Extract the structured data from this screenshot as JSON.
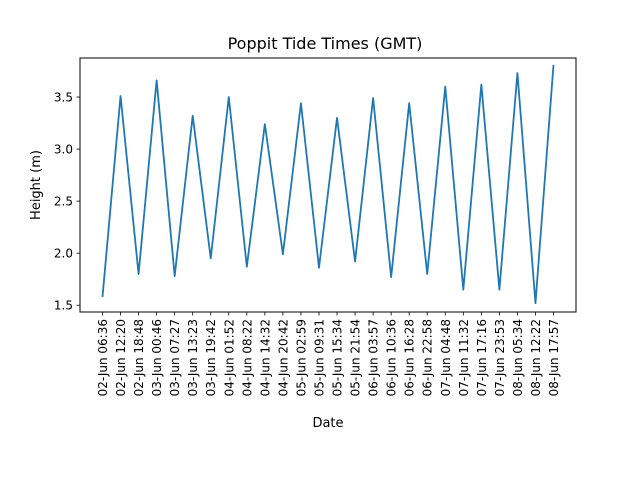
{
  "chart_data": {
    "type": "line",
    "title": "Poppit Tide Times (GMT)",
    "xlabel": "Date",
    "ylabel": "Height (m)",
    "categories": [
      "02-Jun 06:36",
      "02-Jun 12:20",
      "02-Jun 18:48",
      "03-Jun 00:46",
      "03-Jun 07:27",
      "03-Jun 13:23",
      "03-Jun 19:42",
      "04-Jun 01:52",
      "04-Jun 08:22",
      "04-Jun 14:32",
      "04-Jun 20:42",
      "05-Jun 02:59",
      "05-Jun 09:31",
      "05-Jun 15:34",
      "05-Jun 21:54",
      "06-Jun 03:57",
      "06-Jun 10:36",
      "06-Jun 16:28",
      "06-Jun 22:58",
      "07-Jun 04:48",
      "07-Jun 11:32",
      "07-Jun 17:16",
      "07-Jun 23:53",
      "08-Jun 05:34",
      "08-Jun 12:22",
      "08-Jun 17:57"
    ],
    "series": [
      {
        "color": "#1f77b4",
        "values": [
          1.58,
          3.51,
          1.8,
          3.66,
          1.78,
          3.32,
          1.95,
          3.5,
          1.87,
          3.24,
          1.99,
          3.44,
          1.86,
          3.3,
          1.92,
          3.49,
          1.77,
          3.44,
          1.8,
          3.6,
          1.65,
          3.62,
          1.65,
          3.73,
          1.52,
          3.81
        ]
      }
    ],
    "ylim": [
      1.435,
      3.875
    ],
    "yticks": [
      1.5,
      2.0,
      2.5,
      3.0,
      3.5
    ],
    "ytick_labels": [
      "1.5",
      "2.0",
      "2.5",
      "3.0",
      "3.5"
    ],
    "grid": false,
    "legend": false
  }
}
